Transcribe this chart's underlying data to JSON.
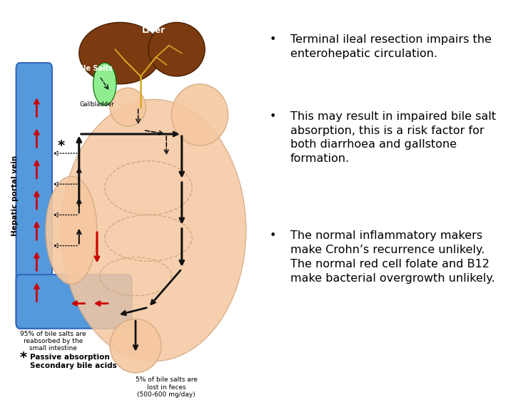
{
  "background_color": "#FFFFFF",
  "bullet_points": [
    "Terminal ileal resection impairs the\nenterohepatic circulation.",
    "This may result in impaired bile salt\nabsorption, this is a risk factor for\nboth diarrhoea and gallstone\nformation.",
    "The normal inflammatory makers\nmake Crohn’s recurrence unlikely.\nThe normal red cell folate and B12\nmake bacterial overgrowth unlikely."
  ],
  "text_color": "#000000",
  "font_size": 11.5,
  "liver_color": "#7B3A10",
  "bile_duct_color": "#D4A820",
  "gallbladder_color": "#90EE90",
  "intestine_color": "#F5C8A0",
  "intestine_edge": "#D4A882",
  "portal_vein_color": "#5599DD",
  "portal_vein_edge": "#3366BB",
  "arrow_red": "#CC0000",
  "arrow_black": "#111111",
  "label_hepatic": "Hepatic portal vein",
  "label_liver": "Liver",
  "label_bile_salts": "Bile Salts",
  "label_gallbladder": "Gallbladder",
  "label_95": "95% of bile salts are\nreabsorbed by the\nsmall intestine",
  "label_5": "5% of bile salts are\nlost in feces\n(500-600 mg/day)",
  "label_passive_star": "*",
  "label_passive_text": "Passive absorption\nSecondary bile acids"
}
